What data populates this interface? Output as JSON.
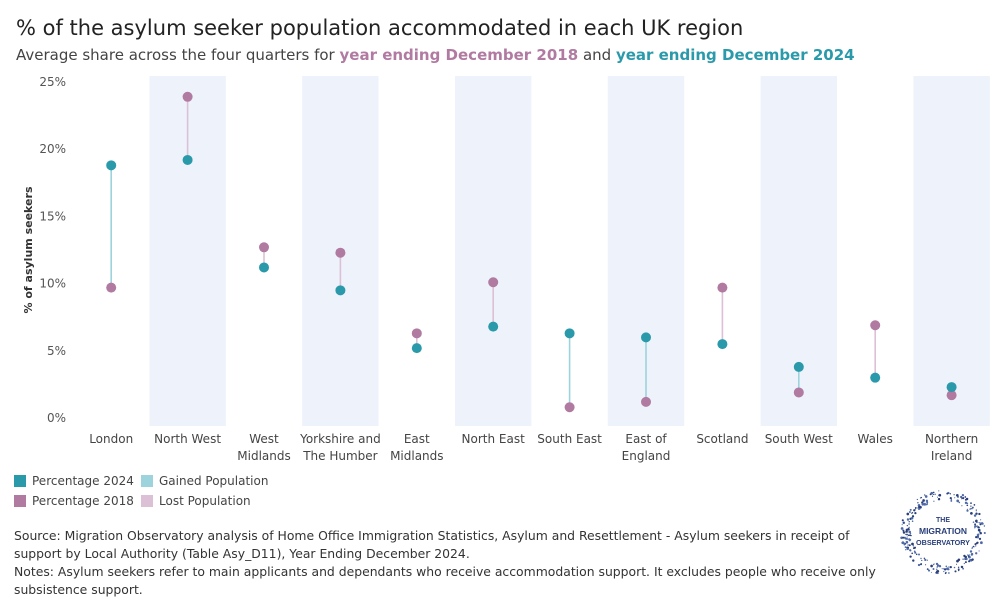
{
  "header": {
    "title": "% of the asylum seeker population accommodated in each UK region",
    "subtitle_prefix": "Average share across the four quarters for ",
    "subtitle_2018": "year ending December 2018",
    "subtitle_mid": " and ",
    "subtitle_2024": "year ending December 2024"
  },
  "colors": {
    "pct_2024": "#2a9aab",
    "pct_2018": "#b07aa1",
    "gained": "#9dd3dc",
    "lost": "#dcc1d6",
    "band": "#eef2fb"
  },
  "chart_data": {
    "type": "dumbbell",
    "ylabel": "% of asylum seekers",
    "ylim": [
      0,
      25
    ],
    "yticks": [
      0,
      5,
      10,
      15,
      20,
      25
    ],
    "ytick_labels": [
      "0%",
      "5%",
      "10%",
      "15%",
      "20%",
      "25%"
    ],
    "categories": [
      [
        "London"
      ],
      [
        "North West"
      ],
      [
        "West",
        "Midlands"
      ],
      [
        "Yorkshire and",
        "The Humber"
      ],
      [
        "East",
        "Midlands"
      ],
      [
        "North East"
      ],
      [
        "South East"
      ],
      [
        "East of",
        "England"
      ],
      [
        "Scotland"
      ],
      [
        "South West"
      ],
      [
        "Wales"
      ],
      [
        "Northern",
        "Ireland"
      ]
    ],
    "series": [
      {
        "name": "Percentage 2024",
        "values": [
          18.8,
          19.2,
          11.2,
          9.5,
          5.2,
          6.8,
          6.3,
          6.0,
          5.5,
          3.8,
          3.0,
          2.3
        ]
      },
      {
        "name": "Percentage 2018",
        "values": [
          9.7,
          23.9,
          12.7,
          12.3,
          6.3,
          10.1,
          0.8,
          1.2,
          9.7,
          1.9,
          6.9,
          1.7
        ]
      }
    ],
    "shaded_bands": [
      "North West",
      "Yorkshire and The Humber",
      "North East",
      "East of England",
      "South West",
      "Northern Ireland"
    ],
    "legend": [
      "Percentage 2024",
      "Gained Population",
      "Percentage 2018",
      "Lost Population"
    ],
    "grid": false
  },
  "footer": {
    "source": "Source: Migration Observatory analysis of Home Office Immigration Statistics, Asylum and Resettlement - Asylum seekers in receipt of support by Local Authority (Table Asy_D11), Year Ending December 2024.",
    "notes": "Notes: Asylum seekers refer to main applicants and dependants who receive accommodation support. It excludes people who receive only subsistence support."
  },
  "logo": {
    "line1": "THE",
    "line2": "MIGRATION",
    "line3": "OBSERVATORY"
  }
}
